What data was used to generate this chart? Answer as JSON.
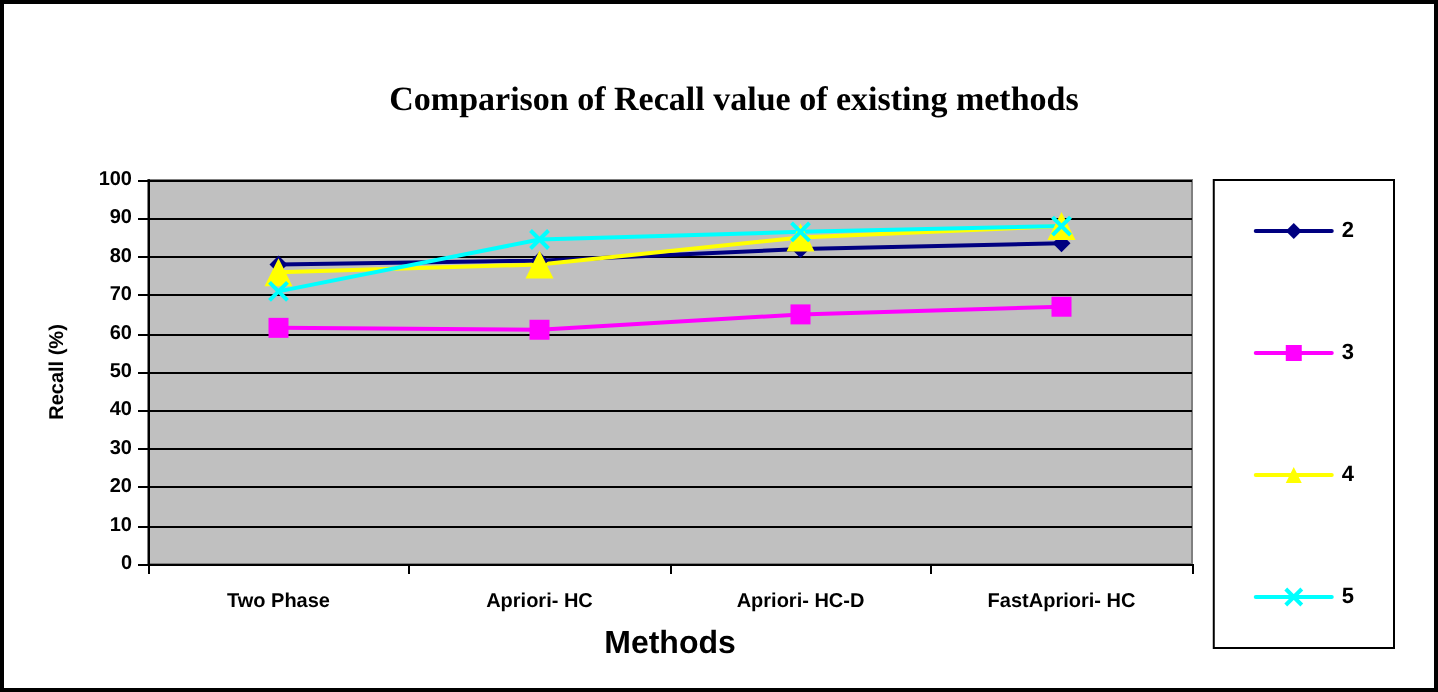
{
  "chart_data": {
    "type": "line",
    "title": "Comparison of Recall value of existing methods",
    "xlabel": "Methods",
    "ylabel": "Recall (%)",
    "categories": [
      "Two Phase",
      "Apriori- HC",
      "Apriori- HC-D",
      "FastApriori- HC"
    ],
    "series": [
      {
        "name": "2",
        "color": "#000080",
        "marker": "diamond",
        "values": [
          78,
          79,
          82,
          83.5
        ]
      },
      {
        "name": "3",
        "color": "#ff00ff",
        "marker": "square",
        "values": [
          61.5,
          61,
          65,
          67
        ]
      },
      {
        "name": "4",
        "color": "#ffff00",
        "marker": "triangle",
        "values": [
          76,
          78,
          85,
          88
        ]
      },
      {
        "name": "5",
        "color": "#00ffff",
        "marker": "cross",
        "values": [
          71,
          84.5,
          86.5,
          88
        ]
      }
    ],
    "ylim": [
      0,
      100
    ],
    "yticks": [
      0,
      10,
      20,
      30,
      40,
      50,
      60,
      70,
      80,
      90,
      100
    ],
    "grid": "y",
    "legend": "right"
  }
}
